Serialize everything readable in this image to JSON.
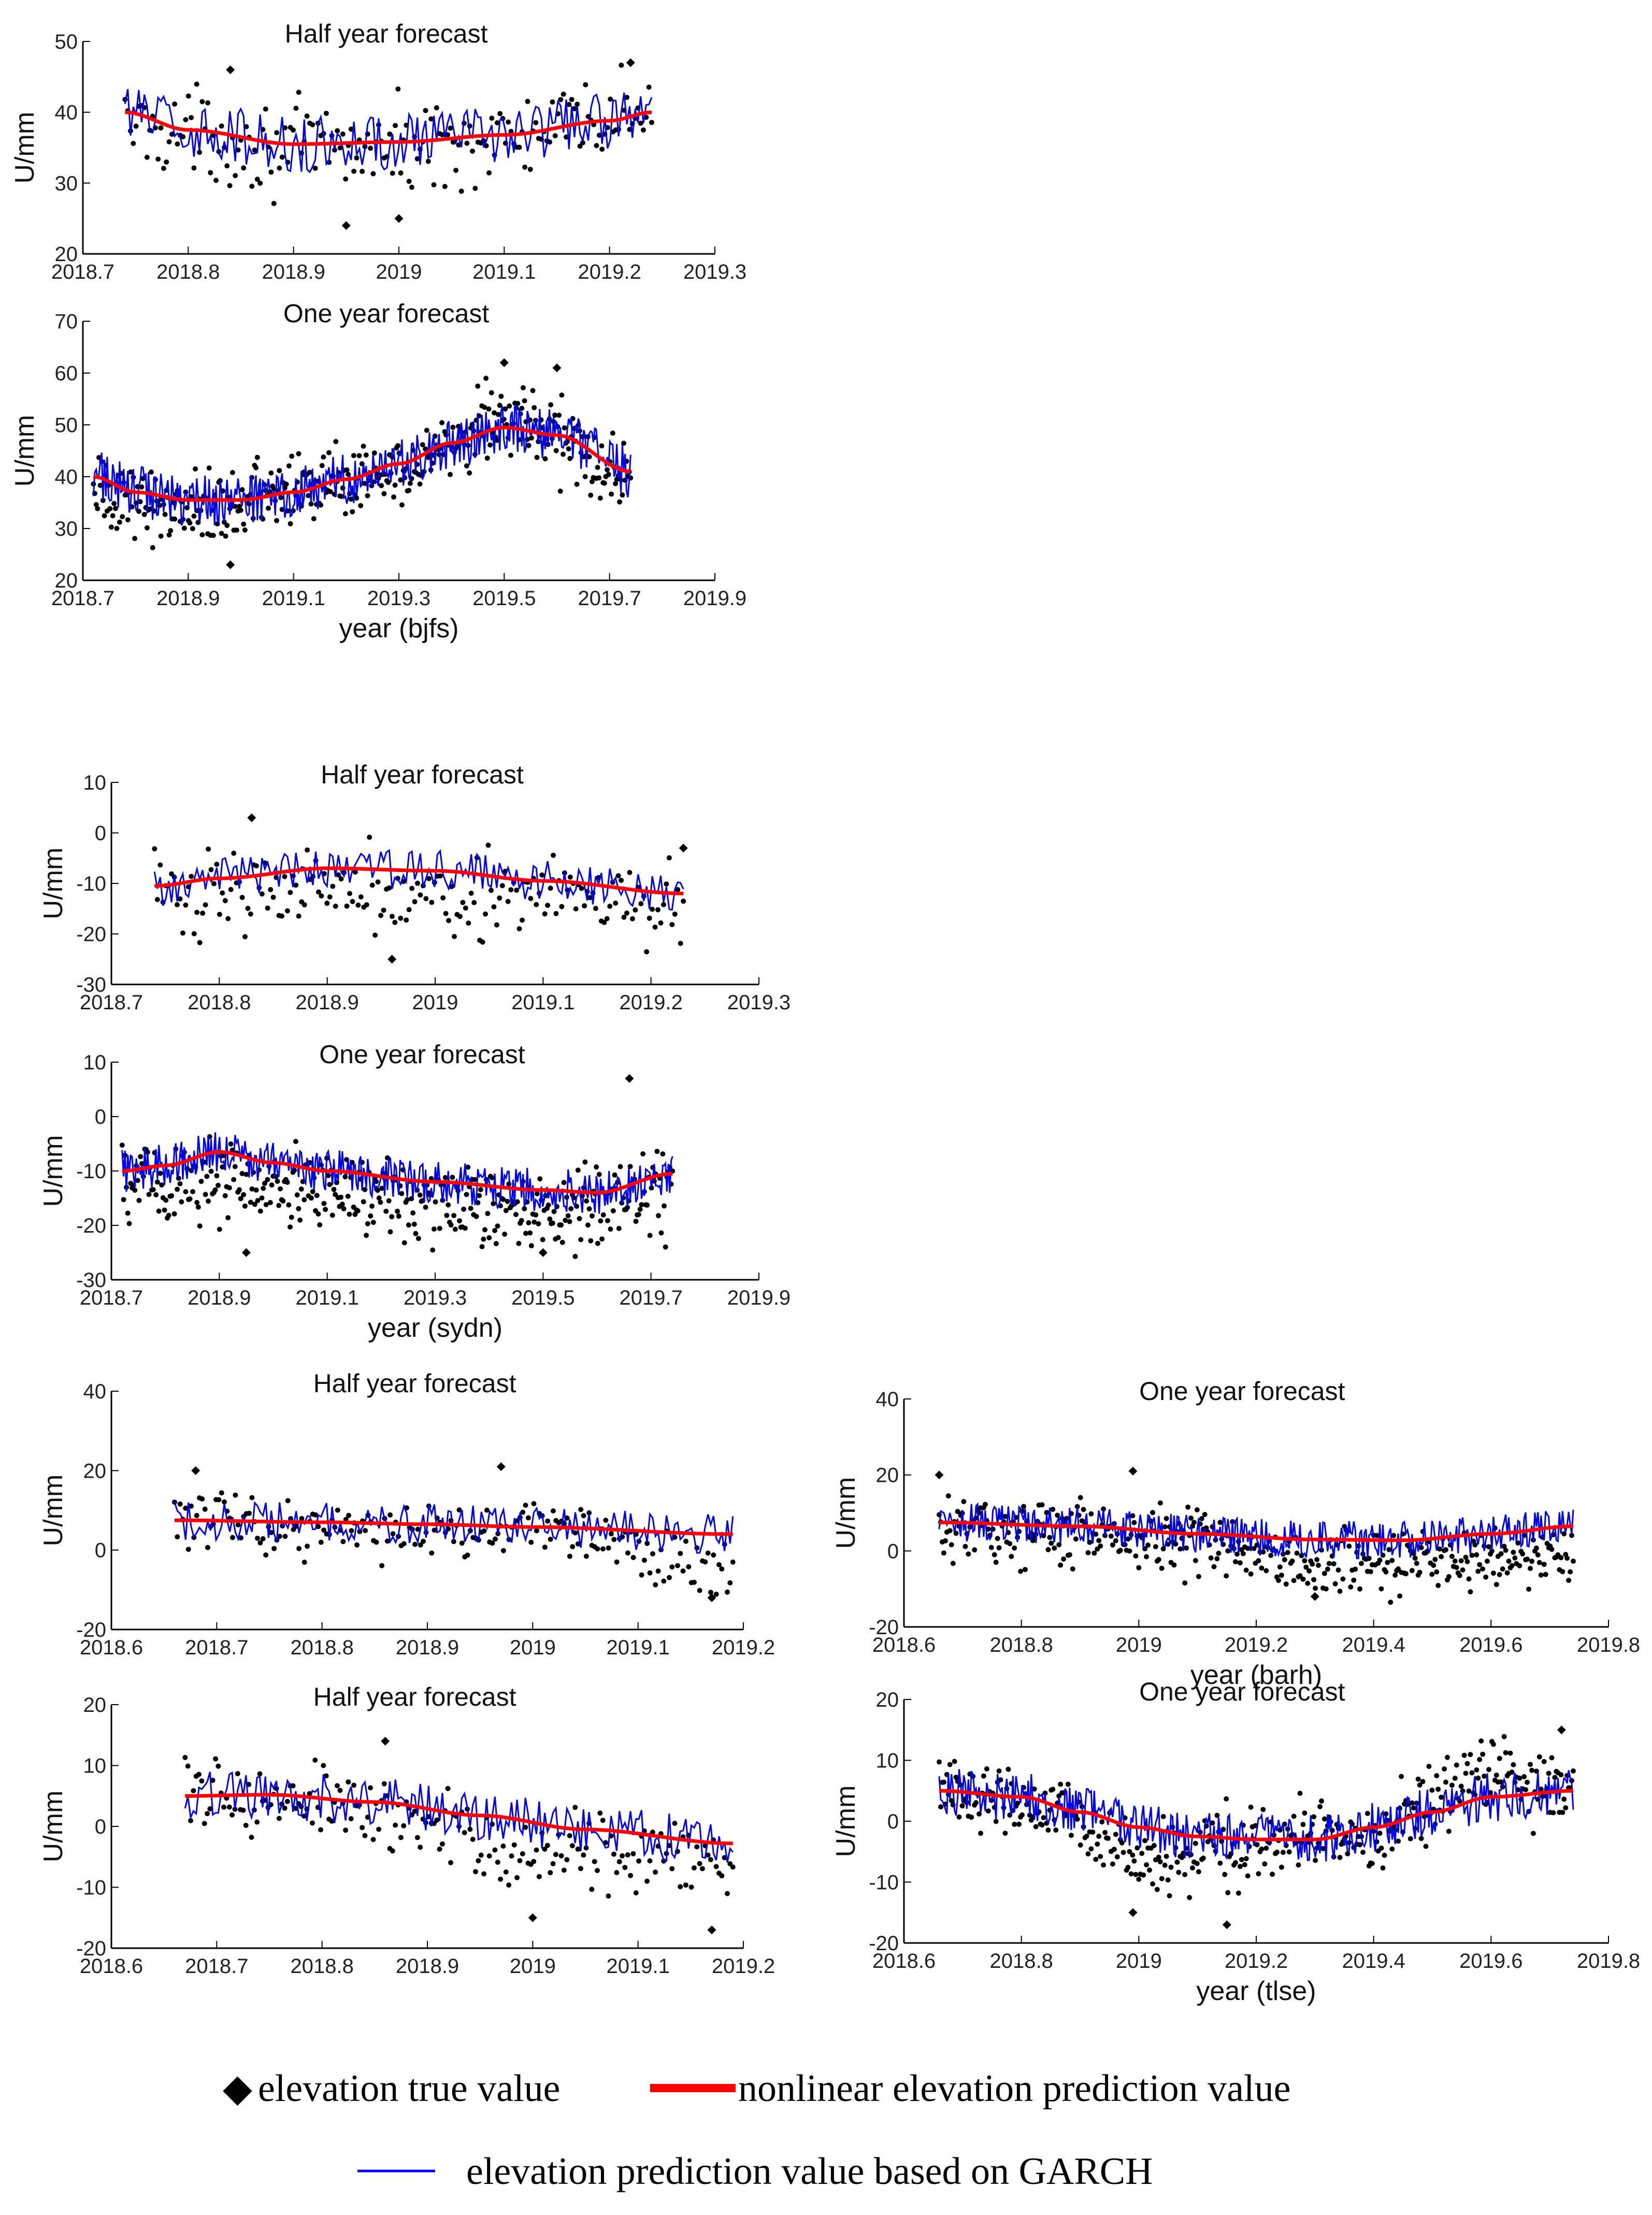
{
  "figure": {
    "legend": {
      "true_value": {
        "marker": "◆",
        "label": "elevation true value"
      },
      "nonlinear": {
        "label": "nonlinear elevation prediction value"
      },
      "garch": {
        "label": "elevation prediction value based on GARCH"
      }
    }
  },
  "colors": {
    "true": "#000000",
    "nonlinear": "#ff0000",
    "garch": "#0000ff"
  },
  "chart_data": [
    {
      "id": "bjfs-half",
      "type": "line",
      "title": "Half year forecast",
      "ylabel": "U/mm",
      "xlabel": "",
      "xlim": [
        2018.7,
        2019.3
      ],
      "ylim": [
        20,
        50
      ],
      "xticks": [
        "2018.7",
        "2018.8",
        "2018.9",
        "2019",
        "2019.1",
        "2019.2",
        "2019.3"
      ],
      "yticks": [
        "20",
        "30",
        "40",
        "50"
      ],
      "x_range": [
        2018.74,
        2019.24
      ],
      "series": [
        {
          "name": "elevation true value",
          "style": "dots",
          "center": [
            [
              2018.74,
              38
            ],
            [
              2018.9,
              35
            ],
            [
              2019.0,
              35
            ],
            [
              2019.1,
              36
            ],
            [
              2019.24,
              40
            ]
          ],
          "spread": 6,
          "outliers": [
            [
              2018.95,
              24
            ],
            [
              2019.0,
              25
            ],
            [
              2018.84,
              46
            ],
            [
              2019.22,
              47
            ]
          ]
        },
        {
          "name": "nonlinear elevation prediction value",
          "style": "smooth",
          "points": [
            [
              2018.74,
              40
            ],
            [
              2018.8,
              37.5
            ],
            [
              2018.9,
              35.5
            ],
            [
              2019.0,
              35.8
            ],
            [
              2019.1,
              36.8
            ],
            [
              2019.2,
              38.8
            ],
            [
              2019.24,
              40
            ]
          ]
        },
        {
          "name": "elevation prediction value based on GARCH",
          "style": "noisy",
          "amp": 4
        }
      ]
    },
    {
      "id": "bjfs-one",
      "type": "line",
      "title": "One year forecast",
      "ylabel": "U/mm",
      "xlabel": "year  (bjfs)",
      "xlim": [
        2018.7,
        2019.9
      ],
      "ylim": [
        20,
        70
      ],
      "xticks": [
        "2018.7",
        "2018.9",
        "2019.1",
        "2019.3",
        "2019.5",
        "2019.7",
        "2019.9"
      ],
      "yticks": [
        "20",
        "30",
        "40",
        "50",
        "60",
        "70"
      ],
      "x_range": [
        2018.72,
        2019.74
      ],
      "series": [
        {
          "name": "elevation true value",
          "style": "dots",
          "center": [
            [
              2018.72,
              36
            ],
            [
              2018.9,
              34
            ],
            [
              2019.1,
              37
            ],
            [
              2019.3,
              42
            ],
            [
              2019.5,
              52
            ],
            [
              2019.74,
              40
            ]
          ],
          "spread": 7,
          "outliers": [
            [
              2018.98,
              23
            ],
            [
              2019.5,
              62
            ],
            [
              2019.6,
              61
            ]
          ]
        },
        {
          "name": "nonlinear elevation prediction value",
          "style": "smooth",
          "points": [
            [
              2018.72,
              40
            ],
            [
              2018.8,
              37
            ],
            [
              2018.9,
              35.5
            ],
            [
              2019.0,
              35.5
            ],
            [
              2019.1,
              37
            ],
            [
              2019.2,
              39.5
            ],
            [
              2019.3,
              42.5
            ],
            [
              2019.4,
              46.5
            ],
            [
              2019.5,
              49.5
            ],
            [
              2019.6,
              48
            ],
            [
              2019.74,
              41
            ]
          ]
        },
        {
          "name": "elevation prediction value based on GARCH",
          "style": "noisy",
          "amp": 5
        }
      ]
    },
    {
      "id": "sydn-half",
      "type": "line",
      "title": "Half year forecast",
      "ylabel": "U/mm",
      "xlabel": "",
      "xlim": [
        2018.7,
        2019.3
      ],
      "ylim": [
        -30,
        10
      ],
      "xticks": [
        "2018.7",
        "2018.8",
        "2018.9",
        "2019",
        "2019.1",
        "2019.2",
        "2019.3"
      ],
      "yticks": [
        "-30",
        "-20",
        "-10",
        "0",
        "10"
      ],
      "x_range": [
        2018.74,
        2019.23
      ],
      "series": [
        {
          "name": "elevation true value",
          "style": "dots",
          "center": [
            [
              2018.74,
              -12
            ],
            [
              2018.9,
              -10
            ],
            [
              2019.0,
              -12
            ],
            [
              2019.23,
              -14
            ]
          ],
          "spread": 8,
          "outliers": [
            [
              2018.83,
              3
            ],
            [
              2018.96,
              -25
            ],
            [
              2019.23,
              -3
            ]
          ]
        },
        {
          "name": "nonlinear elevation prediction value",
          "style": "smooth",
          "points": [
            [
              2018.74,
              -10.5
            ],
            [
              2018.8,
              -9
            ],
            [
              2018.9,
              -7
            ],
            [
              2019.0,
              -7.5
            ],
            [
              2019.1,
              -9.5
            ],
            [
              2019.23,
              -12
            ]
          ]
        },
        {
          "name": "elevation prediction value based on GARCH",
          "style": "noisy",
          "amp": 4
        }
      ]
    },
    {
      "id": "sydn-one",
      "type": "line",
      "title": "One year forecast",
      "ylabel": "U/mm",
      "xlabel": "year  (sydn)",
      "xlim": [
        2018.7,
        2019.9
      ],
      "ylim": [
        -30,
        10
      ],
      "xticks": [
        "2018.7",
        "2018.9",
        "2019.1",
        "2019.3",
        "2019.5",
        "2019.7",
        "2019.9"
      ],
      "yticks": [
        "-30",
        "-20",
        "-10",
        "0",
        "10"
      ],
      "x_range": [
        2018.72,
        2019.74
      ],
      "series": [
        {
          "name": "elevation true value",
          "style": "dots",
          "center": [
            [
              2018.72,
              -12
            ],
            [
              2018.9,
              -12
            ],
            [
              2019.1,
              -14
            ],
            [
              2019.3,
              -16
            ],
            [
              2019.5,
              -17
            ],
            [
              2019.74,
              -14
            ]
          ],
          "spread": 8,
          "outliers": [
            [
              2019.66,
              7
            ],
            [
              2018.95,
              -25
            ],
            [
              2019.5,
              -25
            ]
          ]
        },
        {
          "name": "nonlinear elevation prediction value",
          "style": "smooth",
          "points": [
            [
              2018.72,
              -10
            ],
            [
              2018.8,
              -9
            ],
            [
              2018.9,
              -6.5
            ],
            [
              2019.0,
              -8.5
            ],
            [
              2019.1,
              -10
            ],
            [
              2019.3,
              -12
            ],
            [
              2019.5,
              -13.5
            ],
            [
              2019.6,
              -14
            ],
            [
              2019.74,
              -10.5
            ]
          ]
        },
        {
          "name": "elevation prediction value based on GARCH",
          "style": "noisy",
          "amp": 4
        }
      ]
    },
    {
      "id": "barh-half",
      "type": "line",
      "title": "Half year forecast",
      "ylabel": "U/mm",
      "xlabel": "",
      "xlim": [
        2018.6,
        2019.2
      ],
      "ylim": [
        -20,
        40
      ],
      "xticks": [
        "2018.6",
        "2018.7",
        "2018.8",
        "2018.9",
        "2019",
        "2019.1",
        "2019.2"
      ],
      "yticks": [
        "-20",
        "0",
        "20",
        "40"
      ],
      "x_range": [
        2018.66,
        2019.19
      ],
      "series": [
        {
          "name": "elevation true value",
          "style": "dots",
          "center": [
            [
              2018.66,
              8
            ],
            [
              2018.8,
              5
            ],
            [
              2018.9,
              4
            ],
            [
              2019.0,
              6
            ],
            [
              2019.19,
              -5
            ]
          ],
          "spread": 7,
          "outliers": [
            [
              2018.68,
              20
            ],
            [
              2018.97,
              21
            ],
            [
              2019.17,
              -12
            ]
          ]
        },
        {
          "name": "nonlinear elevation prediction value",
          "style": "smooth",
          "points": [
            [
              2018.66,
              7.5
            ],
            [
              2018.8,
              7
            ],
            [
              2018.9,
              6.5
            ],
            [
              2019.0,
              5.8
            ],
            [
              2019.19,
              4
            ]
          ]
        },
        {
          "name": "elevation prediction value based on GARCH",
          "style": "noisy",
          "amp": 5
        }
      ]
    },
    {
      "id": "barh-one",
      "type": "line",
      "title": "One year forecast",
      "ylabel": "U/mm",
      "xlabel": "year  (barh)",
      "xlim": [
        2018.6,
        2019.8
      ],
      "ylim": [
        -20,
        40
      ],
      "xticks": [
        "2018.6",
        "2018.8",
        "2019",
        "2019.2",
        "2019.4",
        "2019.6",
        "2019.8"
      ],
      "yticks": [
        "-20",
        "0",
        "20",
        "40"
      ],
      "x_range": [
        2018.66,
        2019.74
      ],
      "series": [
        {
          "name": "elevation true value",
          "style": "dots",
          "center": [
            [
              2018.66,
              7
            ],
            [
              2018.9,
              5
            ],
            [
              2019.1,
              2
            ],
            [
              2019.3,
              -3
            ],
            [
              2019.5,
              -3
            ],
            [
              2019.74,
              -1
            ]
          ],
          "spread": 8,
          "outliers": [
            [
              2018.66,
              20
            ],
            [
              2018.99,
              21
            ],
            [
              2019.3,
              -12
            ]
          ]
        },
        {
          "name": "nonlinear elevation prediction value",
          "style": "smooth",
          "points": [
            [
              2018.66,
              7.5
            ],
            [
              2018.9,
              6.5
            ],
            [
              2019.1,
              4.5
            ],
            [
              2019.3,
              3
            ],
            [
              2019.45,
              2.8
            ],
            [
              2019.6,
              4.5
            ],
            [
              2019.74,
              6.5
            ]
          ]
        },
        {
          "name": "elevation prediction value based on GARCH",
          "style": "noisy",
          "amp": 5
        }
      ]
    },
    {
      "id": "tlse-half",
      "type": "line",
      "title": "Half year forecast",
      "ylabel": "U/mm",
      "xlabel": "",
      "xlim": [
        2018.6,
        2019.2
      ],
      "ylim": [
        -20,
        20
      ],
      "xticks": [
        "2018.6",
        "2018.7",
        "2018.8",
        "2018.9",
        "2019",
        "2019.1",
        "2019.2"
      ],
      "yticks": [
        "-20",
        "-10",
        "0",
        "10",
        "20"
      ],
      "x_range": [
        2018.67,
        2019.19
      ],
      "series": [
        {
          "name": "elevation true value",
          "style": "dots",
          "center": [
            [
              2018.67,
              5
            ],
            [
              2018.8,
              3
            ],
            [
              2018.9,
              1
            ],
            [
              2019.0,
              -5
            ],
            [
              2019.19,
              -5
            ]
          ],
          "spread": 6,
          "outliers": [
            [
              2018.86,
              14
            ],
            [
              2019.0,
              -15
            ],
            [
              2019.17,
              -17
            ]
          ]
        },
        {
          "name": "nonlinear elevation prediction value",
          "style": "smooth",
          "points": [
            [
              2018.67,
              5
            ],
            [
              2018.75,
              5.2
            ],
            [
              2018.85,
              4
            ],
            [
              2018.95,
              1.8
            ],
            [
              2019.05,
              -0.5
            ],
            [
              2019.19,
              -2.8
            ]
          ]
        },
        {
          "name": "elevation prediction value based on GARCH",
          "style": "noisy",
          "amp": 4
        }
      ]
    },
    {
      "id": "tlse-one",
      "type": "line",
      "title": "One year forecast",
      "ylabel": "U/mm",
      "xlabel": "year  (tlse)",
      "xlim": [
        2018.6,
        2019.8
      ],
      "ylim": [
        -20,
        20
      ],
      "xticks": [
        "2018.6",
        "2018.8",
        "2019",
        "2019.2",
        "2019.4",
        "2019.6",
        "2019.8"
      ],
      "yticks": [
        "-20",
        "-10",
        "0",
        "10",
        "20"
      ],
      "x_range": [
        2018.66,
        2019.74
      ],
      "series": [
        {
          "name": "elevation true value",
          "style": "dots",
          "center": [
            [
              2018.66,
              5
            ],
            [
              2018.85,
              2
            ],
            [
              2019.0,
              -6
            ],
            [
              2019.2,
              -4
            ],
            [
              2019.4,
              -2
            ],
            [
              2019.6,
              8
            ],
            [
              2019.74,
              5
            ]
          ],
          "spread": 6,
          "outliers": [
            [
              2018.99,
              -15
            ],
            [
              2019.15,
              -17
            ],
            [
              2019.72,
              15
            ]
          ]
        },
        {
          "name": "nonlinear elevation prediction value",
          "style": "smooth",
          "points": [
            [
              2018.66,
              5
            ],
            [
              2018.8,
              4
            ],
            [
              2018.9,
              1.5
            ],
            [
              2019.0,
              -1
            ],
            [
              2019.1,
              -2.5
            ],
            [
              2019.2,
              -3
            ],
            [
              2019.3,
              -3
            ],
            [
              2019.4,
              -1
            ],
            [
              2019.5,
              1.5
            ],
            [
              2019.6,
              4
            ],
            [
              2019.74,
              5
            ]
          ]
        },
        {
          "name": "elevation prediction value based on GARCH",
          "style": "noisy",
          "amp": 4
        }
      ]
    }
  ]
}
